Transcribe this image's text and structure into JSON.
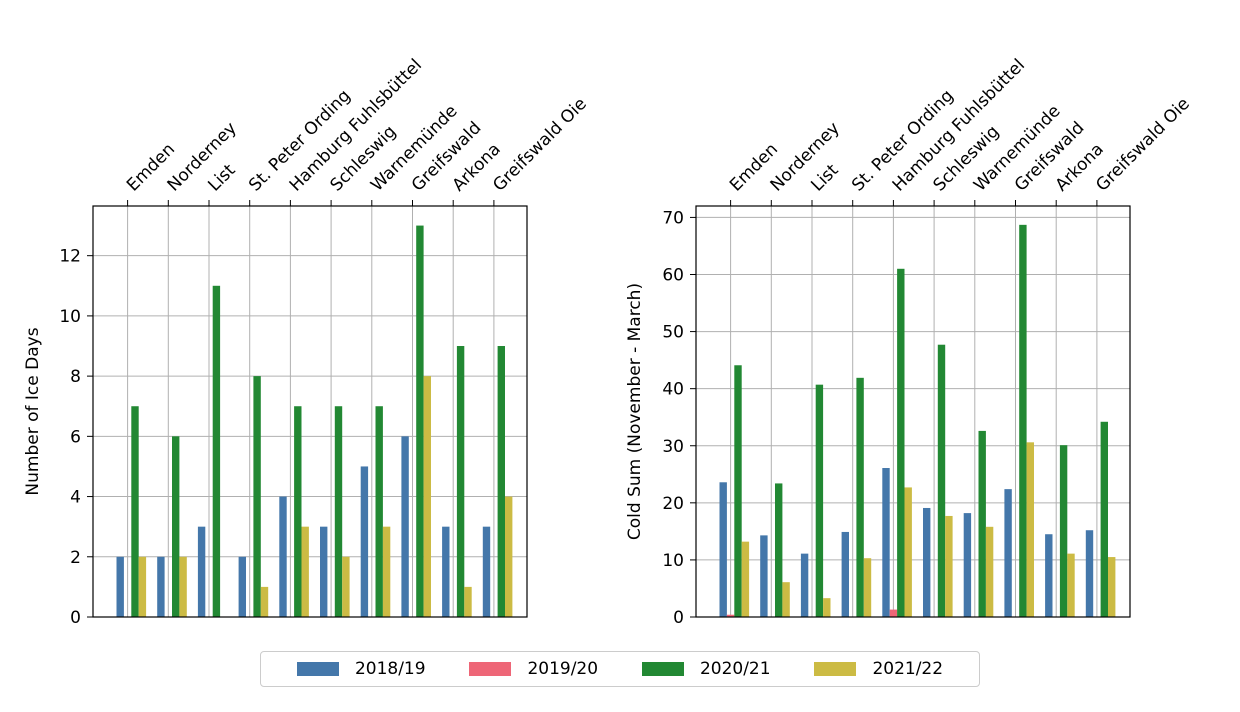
{
  "chart_data": [
    {
      "type": "bar",
      "categories": [
        "Emden",
        "Norderney",
        "List",
        "St. Peter Ording",
        "Hamburg Fuhlsbüttel",
        "Schleswig",
        "Warnemünde",
        "Greifswald",
        "Arkona",
        "Greifswald Oie"
      ],
      "ylabel": "Number of Ice Days",
      "xlabel": "",
      "ylim": [
        0,
        13.65
      ],
      "yticks": [
        0,
        2,
        4,
        6,
        8,
        10,
        12
      ],
      "grid": true,
      "series": [
        {
          "name": "2018/19",
          "values": [
            2,
            2,
            3,
            2,
            4,
            3,
            5,
            6,
            3,
            3
          ]
        },
        {
          "name": "2019/20",
          "values": [
            0,
            0,
            0,
            0,
            0,
            0,
            0,
            0,
            0,
            0
          ]
        },
        {
          "name": "2020/21",
          "values": [
            7,
            6,
            11,
            8,
            7,
            7,
            7,
            13,
            9,
            9
          ]
        },
        {
          "name": "2021/22",
          "values": [
            2,
            2,
            0,
            1,
            3,
            2,
            3,
            8,
            1,
            4
          ]
        }
      ]
    },
    {
      "type": "bar",
      "categories": [
        "Emden",
        "Norderney",
        "List",
        "St. Peter Ording",
        "Hamburg Fuhlsbüttel",
        "Schleswig",
        "Warnemünde",
        "Greifswald",
        "Arkona",
        "Greifswald Oie"
      ],
      "ylabel": "Cold Sum (November - March)",
      "xlabel": "",
      "ylim": [
        0,
        72
      ],
      "yticks": [
        0,
        10,
        20,
        30,
        40,
        50,
        60,
        70
      ],
      "grid": true,
      "series": [
        {
          "name": "2018/19",
          "values": [
            23.6,
            14.3,
            11.1,
            14.9,
            26.1,
            19.1,
            18.2,
            22.4,
            14.5,
            15.2
          ]
        },
        {
          "name": "2019/20",
          "values": [
            0.4,
            0,
            0,
            0,
            1.3,
            0,
            0,
            0,
            0,
            0
          ]
        },
        {
          "name": "2020/21",
          "values": [
            44.1,
            23.4,
            40.7,
            41.9,
            61.0,
            47.7,
            32.6,
            68.7,
            30.1,
            34.2
          ]
        },
        {
          "name": "2021/22",
          "values": [
            13.2,
            6.1,
            3.3,
            10.3,
            22.7,
            17.7,
            15.8,
            30.6,
            11.1,
            10.5
          ]
        }
      ]
    }
  ],
  "legend": {
    "items": [
      {
        "label": "2018/19",
        "color": "#4477aa"
      },
      {
        "label": "2019/20",
        "color": "#ee6677"
      },
      {
        "label": "2020/21",
        "color": "#228833"
      },
      {
        "label": "2021/22",
        "color": "#ccbb44"
      }
    ]
  }
}
